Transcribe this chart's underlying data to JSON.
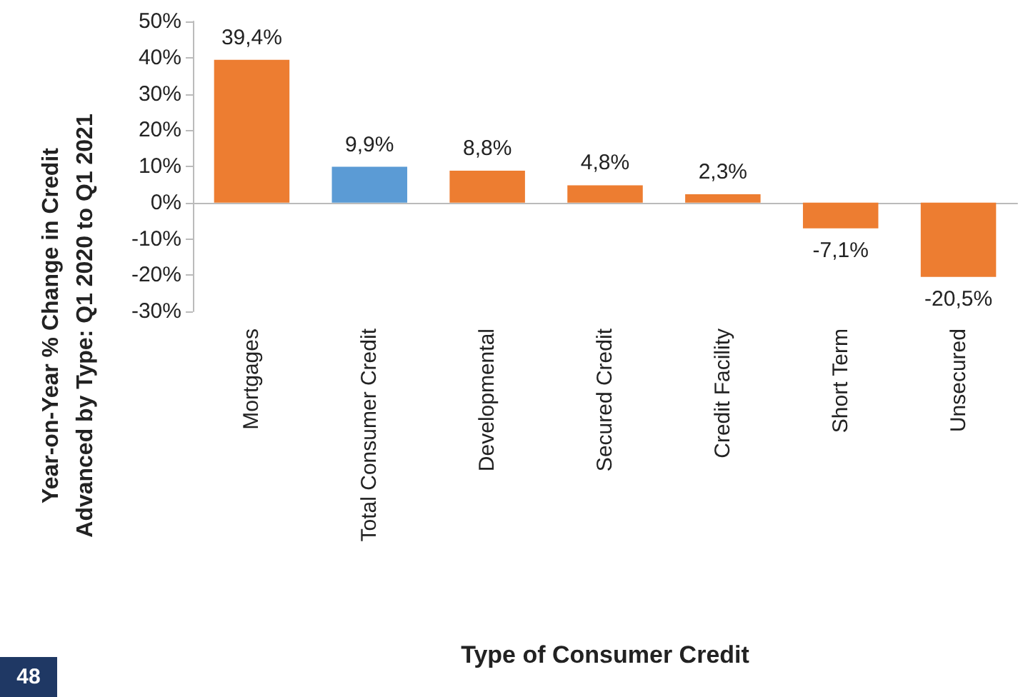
{
  "chart_data": {
    "type": "bar",
    "xlabel": "Type of Consumer Credit",
    "ylabel": "Year-on-Year % Change in Credit\nAdvanced by Type: Q1 2020 to Q1 2021",
    "categories": [
      "Mortgages",
      "Total Consumer Credit",
      "Developmental",
      "Secured Credit",
      "Credit Facility",
      "Short Term",
      "Unsecured"
    ],
    "values": [
      39.4,
      9.9,
      8.8,
      4.8,
      2.3,
      -7.1,
      -20.5
    ],
    "colors": [
      "#ed7d31",
      "#5b9bd5",
      "#ed7d31",
      "#ed7d31",
      "#ed7d31",
      "#ed7d31",
      "#ed7d31"
    ],
    "value_labels": [
      "39,4%",
      "9,9%",
      "8,8%",
      "4,8%",
      "2,3%",
      "-7,1%",
      "-20,5%"
    ],
    "ylim": [
      -30,
      50
    ],
    "yticks": [
      {
        "value": -30,
        "label": "-30%"
      },
      {
        "value": -20,
        "label": "-20%"
      },
      {
        "value": -10,
        "label": "-10%"
      },
      {
        "value": 0,
        "label": "0%"
      },
      {
        "value": 10,
        "label": "10%"
      },
      {
        "value": 20,
        "label": "20%"
      },
      {
        "value": 30,
        "label": "30%"
      },
      {
        "value": 40,
        "label": "40%"
      },
      {
        "value": 50,
        "label": "50%"
      }
    ],
    "annotations": [
      "48"
    ]
  }
}
